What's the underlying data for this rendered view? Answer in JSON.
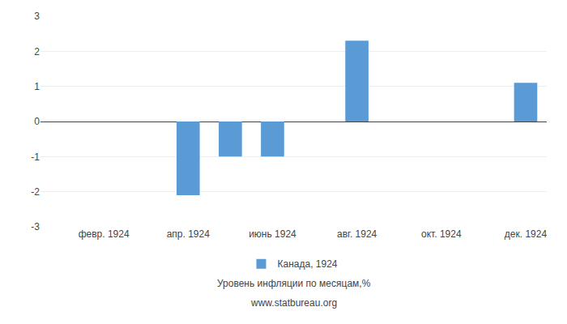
{
  "chart_data": {
    "type": "bar",
    "categories": [
      null,
      "февр. 1924",
      null,
      "апр. 1924",
      null,
      "июнь 1924",
      null,
      "авг. 1924",
      null,
      "окт. 1924",
      null,
      "дек. 1924"
    ],
    "series": [
      {
        "name": "Канада, 1924",
        "color": "#5B9BD5",
        "values": [
          0.0,
          0.0,
          0.0,
          -2.1,
          -1.0,
          -1.0,
          0.0,
          2.3,
          0.0,
          0.0,
          0.0,
          1.1
        ]
      }
    ],
    "ylim": [
      -3,
      3
    ],
    "yticks": [
      -3,
      -2,
      -1,
      0,
      1,
      2,
      3
    ],
    "grid": true,
    "legend": "bottom",
    "annotations": [
      "Уровень инфляции по месяцам,%",
      "www.statbureau.org"
    ]
  }
}
